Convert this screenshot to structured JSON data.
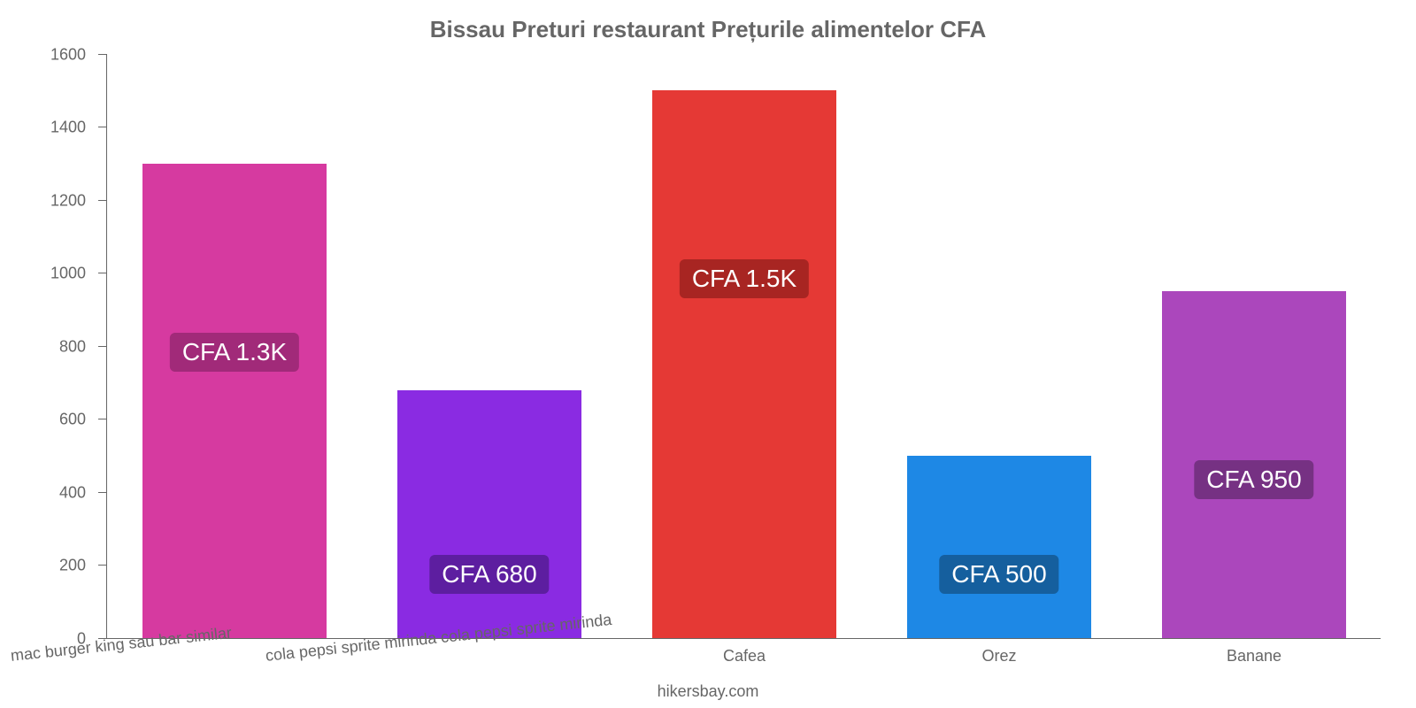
{
  "chart": {
    "type": "bar",
    "title": "Bissau Preturi restaurant Prețurile alimentelor CFA",
    "title_color": "#666666",
    "title_fontsize": 26,
    "background_color": "#ffffff",
    "axis_color": "#666666",
    "tick_label_color": "#666666",
    "tick_label_fontsize": 18,
    "ylim": [
      0,
      1600
    ],
    "ytick_step": 200,
    "yticks": [
      0,
      200,
      400,
      600,
      800,
      1000,
      1200,
      1400,
      1600
    ],
    "bar_width_ratio": 0.72,
    "value_label_fontsize": 28,
    "value_label_text_color": "#ffffff",
    "bars": [
      {
        "category": "mac burger king sau bar similar",
        "value": 1300,
        "value_label": "CFA 1.3K",
        "color": "#d63aa0",
        "label_bg": "#a12a79",
        "label_rotated": true
      },
      {
        "category": "cola pepsi sprite mirinda cola pepsi sprite mirinda",
        "value": 680,
        "value_label": "CFA 680",
        "color": "#8a2be2",
        "label_bg": "#5d1ea0",
        "label_rotated": true
      },
      {
        "category": "Cafea",
        "value": 1500,
        "value_label": "CFA 1.5K",
        "color": "#e53935",
        "label_bg": "#a82522",
        "label_rotated": false
      },
      {
        "category": "Orez",
        "value": 500,
        "value_label": "CFA 500",
        "color": "#1e88e5",
        "label_bg": "#155f9e",
        "label_rotated": false
      },
      {
        "category": "Banane",
        "value": 950,
        "value_label": "CFA 950",
        "color": "#ab47bc",
        "label_bg": "#763183",
        "label_rotated": false
      }
    ],
    "footer": "hikersbay.com"
  }
}
